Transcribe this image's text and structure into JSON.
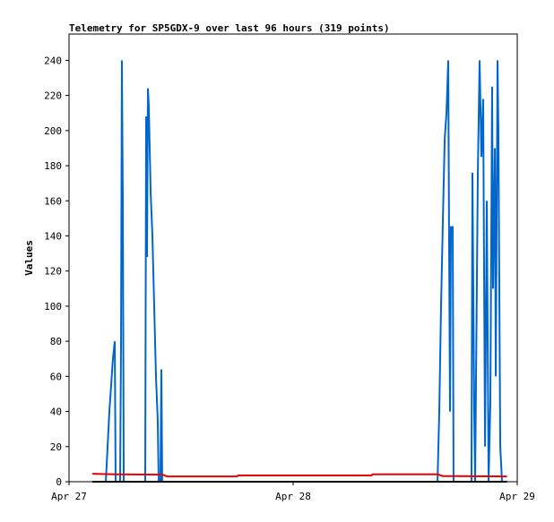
{
  "chart_data": {
    "type": "line",
    "title": "Telemetry for SP5GDX-9 over last 96 hours (319 points)",
    "y_label": "Values",
    "xlim": [
      0,
      48
    ],
    "xticks": [
      {
        "value": 0,
        "label": "Apr 27"
      },
      {
        "value": 24,
        "label": "Apr 28"
      },
      {
        "value": 48,
        "label": "Apr 29"
      }
    ],
    "ylim": [
      0,
      255
    ],
    "yticks": [
      0,
      20,
      40,
      60,
      80,
      100,
      120,
      140,
      160,
      180,
      200,
      220,
      240
    ],
    "grid": false,
    "series": [
      {
        "color": "#0066cc",
        "x": [
          3.94,
          4.13,
          4.32,
          4.51,
          4.7,
          4.9,
          4.99,
          5.47,
          5.57,
          5.66,
          5.76,
          5.86,
          8.16,
          8.26,
          8.35,
          8.45,
          8.54,
          8.64,
          8.74,
          8.93,
          9.12,
          9.31,
          9.5,
          9.6,
          9.79,
          9.89,
          9.98,
          39.46,
          39.65,
          39.84,
          40.04,
          40.23,
          40.42,
          40.61,
          40.7,
          40.8,
          40.9,
          41.09,
          41.18,
          43.1,
          43.2,
          43.39,
          43.49,
          43.78,
          43.97,
          44.16,
          44.35,
          44.55,
          44.74,
          44.93,
          45.12,
          45.31,
          45.41,
          45.6,
          45.7,
          45.89,
          45.98,
          46.18,
          46.37
        ],
        "values": [
          0,
          20,
          40,
          55,
          70,
          80,
          0,
          0,
          80,
          240,
          160,
          0,
          0,
          208,
          128,
          224,
          214,
          190,
          165,
          140,
          100,
          60,
          35,
          0,
          0,
          64,
          0,
          0,
          40,
          100,
          150,
          195,
          210,
          240,
          140,
          40,
          145,
          145,
          0,
          0,
          176,
          40,
          0,
          176,
          240,
          185,
          218,
          20,
          160,
          0,
          45,
          225,
          110,
          190,
          60,
          240,
          200,
          20,
          0
        ]
      },
      {
        "color": "#ee0000",
        "x": [
          2.5,
          5,
          10,
          10.5,
          18,
          18.1,
          32.4,
          32.5,
          39.5,
          40,
          46.9
        ],
        "values": [
          4.5,
          4.2,
          4,
          3,
          3,
          3.6,
          3.6,
          4.2,
          4.2,
          3.2,
          3
        ]
      },
      {
        "color": "#000000",
        "x": [
          2.5,
          46.9
        ],
        "values": [
          0,
          0
        ]
      }
    ]
  }
}
